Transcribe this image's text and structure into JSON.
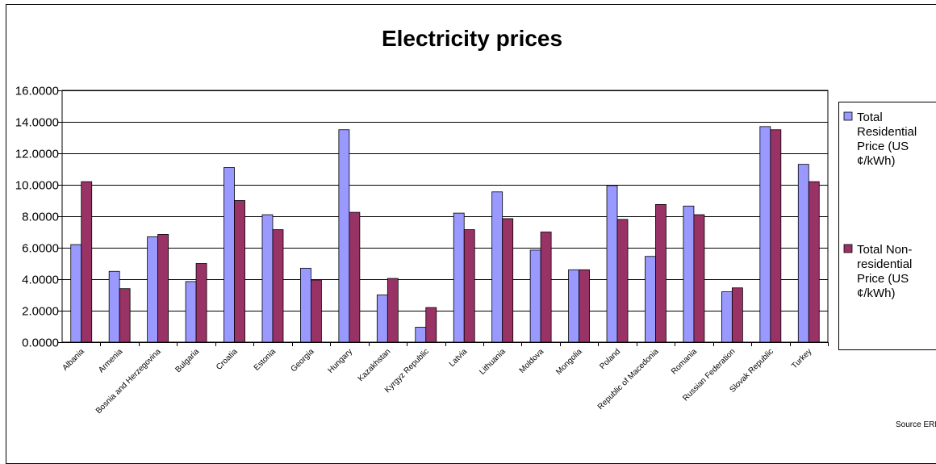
{
  "chart_data": {
    "type": "bar",
    "title": "Electricity prices",
    "source": "Source ERRA",
    "categories": [
      "Albania",
      "Armenia",
      "Bosnia and Herzegovina",
      "Bulgaria",
      "Croatia",
      "Estonia",
      "Georgia",
      "Hungary",
      "Kazakhstan",
      "Kyrgyz Republic",
      "Latvia",
      "Lithuania",
      "Moldova",
      "Mongolia",
      "Poland",
      "Republic of Macedonia",
      "Romania",
      "Russian Federation",
      "Slovak Republic",
      "Turkey"
    ],
    "series": [
      {
        "name": "Total Residential Price (US ¢/kWh)",
        "color": "#9999ff",
        "values": [
          6.2,
          4.5,
          6.7,
          3.85,
          11.1,
          8.1,
          4.7,
          13.5,
          3.0,
          0.95,
          8.2,
          9.55,
          5.85,
          4.6,
          9.95,
          5.45,
          8.65,
          3.2,
          13.7,
          11.3
        ]
      },
      {
        "name": "Total Non-residential Price (US ¢/kWh)",
        "color": "#993366",
        "values": [
          10.2,
          3.4,
          6.85,
          5.0,
          9.0,
          7.15,
          3.95,
          8.25,
          4.05,
          2.2,
          7.15,
          7.85,
          7.0,
          4.6,
          7.8,
          8.75,
          8.1,
          3.45,
          13.5,
          10.2
        ]
      }
    ],
    "legend": [
      [
        "Total",
        "Residential",
        "Price (US",
        "¢/kWh)"
      ],
      [
        "Total Non-",
        "residential",
        "Price (US",
        "¢/kWh)"
      ]
    ],
    "ylim": [
      0,
      16
    ],
    "yticks": [
      "0.0000",
      "2.0000",
      "4.0000",
      "6.0000",
      "8.0000",
      "10.0000",
      "12.0000",
      "14.0000",
      "16.0000"
    ],
    "grid": true,
    "legend_position": "right",
    "plot_background": "#ffffff",
    "gridline_color": "#000000"
  }
}
